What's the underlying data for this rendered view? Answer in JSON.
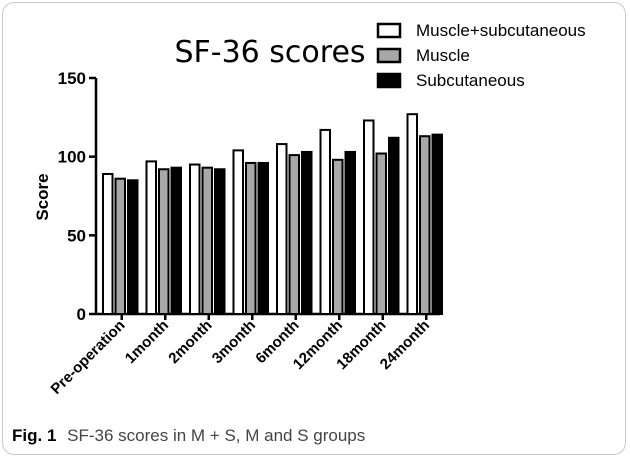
{
  "caption": {
    "label": "Fig. 1",
    "text": "SF-36 scores in M + S, M and S groups"
  },
  "chart_data": {
    "type": "bar",
    "title": "SF-36 scores",
    "ylabel": "Score",
    "xlabel": "",
    "ylim": [
      0,
      150
    ],
    "yticks": [
      0,
      50,
      100,
      150
    ],
    "categories": [
      "Pre-operation",
      "1month",
      "2month",
      "3month",
      "6month",
      "12month",
      "18month",
      "24month"
    ],
    "series": [
      {
        "name": "Muscle+subcutaneous",
        "fill": "#ffffff",
        "values": [
          89,
          97,
          95,
          104,
          108,
          117,
          123,
          127
        ]
      },
      {
        "name": "Muscle",
        "fill": "#a8a8a8",
        "values": [
          86,
          92,
          93,
          96,
          101,
          98,
          102,
          113
        ]
      },
      {
        "name": "Subcutaneous",
        "fill": "#000000",
        "values": [
          85,
          93,
          92,
          96,
          103,
          103,
          112,
          114
        ]
      }
    ],
    "legend_position": "top-right",
    "grid": false
  }
}
